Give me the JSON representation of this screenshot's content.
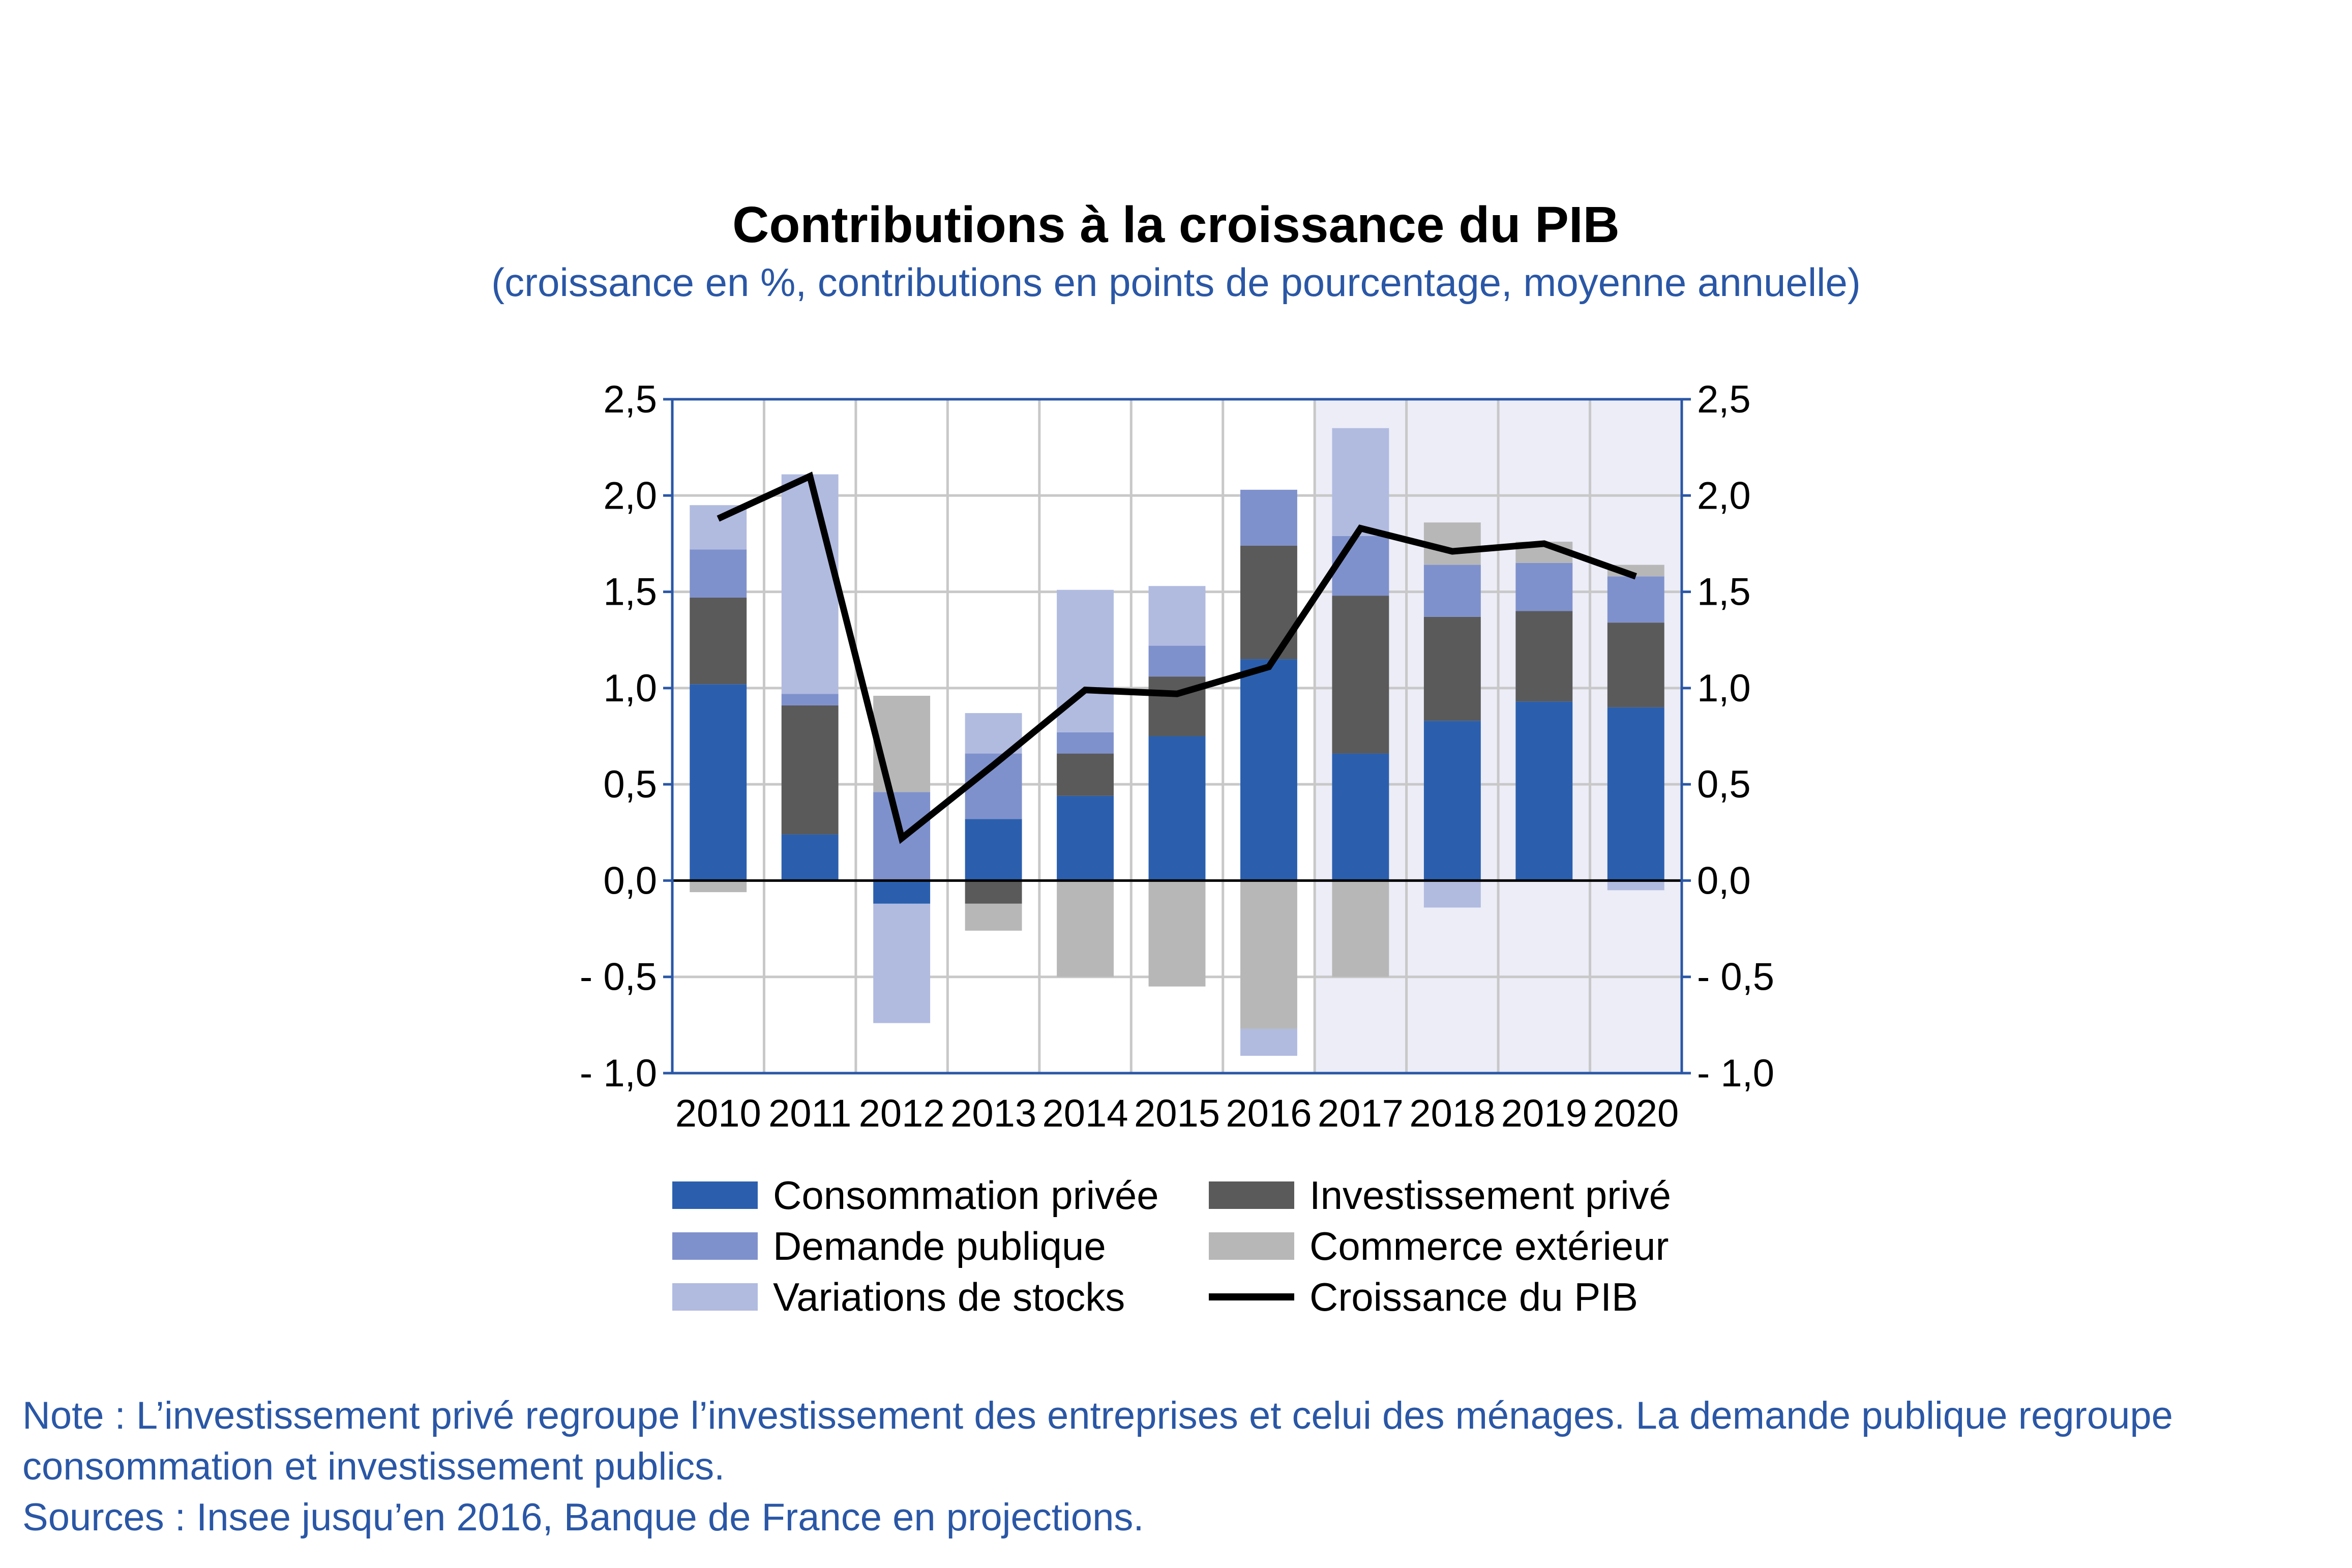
{
  "chart_data": {
    "type": "bar",
    "title": "Contributions à la croissance du PIB",
    "subtitle": "(croissance en %, contributions en points de pourcentage, moyenne annuelle)",
    "categories": [
      "2010",
      "2011",
      "2012",
      "2013",
      "2014",
      "2015",
      "2016",
      "2017",
      "2018",
      "2019",
      "2020"
    ],
    "stacked": true,
    "ylim": [
      -1.0,
      2.5
    ],
    "yticks": [
      2.5,
      2.0,
      1.5,
      1.0,
      0.5,
      0.0,
      -0.5,
      -1.0
    ],
    "ytick_labels": [
      "2,5",
      "2,0",
      "1,5",
      "1,0",
      "0,5",
      "0,0",
      "- 0,5",
      "- 1,0"
    ],
    "y2tick_labels": [
      "2,5",
      "2,0",
      "1,5",
      "1,0",
      "0,5",
      "0,0",
      "- 0,5",
      "- 1,0"
    ],
    "grid": true,
    "projection_shaded_from": "2017",
    "series": [
      {
        "name": "Consommation privée",
        "color": "#2b5fae",
        "values": [
          1.02,
          0.24,
          -0.12,
          0.32,
          0.44,
          0.75,
          1.15,
          0.66,
          0.83,
          0.93,
          0.9
        ]
      },
      {
        "name": "Investissement privé",
        "color": "#5a5a5a",
        "values": [
          0.45,
          0.67,
          0.0,
          -0.12,
          0.22,
          0.31,
          0.59,
          0.82,
          0.54,
          0.47,
          0.44
        ]
      },
      {
        "name": "Demande publique",
        "color": "#7f91cc",
        "values": [
          0.25,
          0.06,
          0.46,
          0.34,
          0.11,
          0.16,
          0.29,
          0.31,
          0.27,
          0.25,
          0.24
        ]
      },
      {
        "name": "Commerce extérieur",
        "color": "#b7b7b7",
        "values": [
          -0.06,
          0.0,
          0.5,
          -0.14,
          -0.5,
          -0.55,
          -0.77,
          -0.5,
          0.22,
          0.11,
          0.06
        ]
      },
      {
        "name": "Variations de stocks",
        "color": "#b1bbe0",
        "values": [
          0.23,
          1.14,
          -0.62,
          0.21,
          0.74,
          0.31,
          -0.14,
          0.56,
          -0.14,
          0.0,
          -0.05
        ]
      }
    ],
    "line": {
      "name": "Croissance du PIB",
      "color": "#000000",
      "values": [
        1.88,
        2.1,
        0.22,
        0.6,
        0.99,
        0.97,
        1.11,
        1.83,
        1.71,
        1.75,
        1.58
      ]
    }
  },
  "legend": [
    {
      "label": "Consommation privée",
      "color": "#2b5fae",
      "kind": "box"
    },
    {
      "label": "Investissement privé",
      "color": "#5a5a5a",
      "kind": "box"
    },
    {
      "label": "Demande publique",
      "color": "#7f91cc",
      "kind": "box"
    },
    {
      "label": "Commerce extérieur",
      "color": "#b7b7b7",
      "kind": "box"
    },
    {
      "label": "Variations de stocks",
      "color": "#b1bbe0",
      "kind": "box"
    },
    {
      "label": "Croissance du PIB",
      "color": "#000000",
      "kind": "line"
    }
  ],
  "note_line1": "Note : L’investissement privé regroupe l’investissement des entreprises et celui des ménages. La demande publique regroupe",
  "note_line2": "consommation et investissement publics.",
  "sources": "Sources : Insee jusqu’en 2016, Banque de France en projections.",
  "colors": {
    "frame": "#2a57a6",
    "grid": "#c8c8c8",
    "shade": "#ecedf7",
    "text_blue": "#2a57a6"
  }
}
